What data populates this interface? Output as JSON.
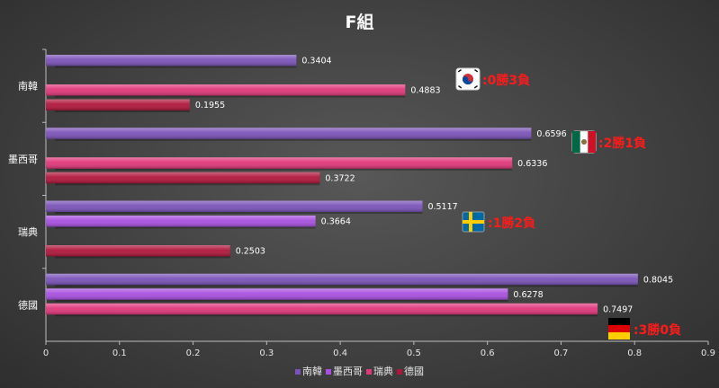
{
  "chart_data": {
    "type": "bar",
    "orientation": "horizontal",
    "title": "F組",
    "categories": [
      "南韓",
      "墨西哥",
      "瑞典",
      "德國"
    ],
    "series": [
      {
        "name": "南韓",
        "color": "#7a52b8",
        "values": [
          0.3404,
          0.6596,
          0.5117,
          0.8045
        ]
      },
      {
        "name": "墨西哥",
        "color": "#a84fe0",
        "values": [
          null,
          null,
          0.3664,
          0.6278
        ]
      },
      {
        "name": "瑞典",
        "color": "#e0367a",
        "values": [
          0.4883,
          0.6336,
          null,
          0.7497
        ]
      },
      {
        "name": "德國",
        "color": "#b0153a",
        "values": [
          0.1955,
          0.3722,
          0.2503,
          null
        ]
      }
    ],
    "xlim": [
      0,
      0.9
    ],
    "xticks": [
      "0",
      "0.1",
      "0.2",
      "0.3",
      "0.4",
      "0.5",
      "0.6",
      "0.7",
      "0.8",
      "0.9"
    ],
    "grid": false,
    "legend_position": "bottom",
    "annotations": [
      {
        "category": "南韓",
        "flag": "korea-flag-icon",
        "text": ":0勝3負",
        "color": "#ff1a1a"
      },
      {
        "category": "墨西哥",
        "flag": "mexico-flag-icon",
        "text": ":2勝1負",
        "color": "#ff1a1a"
      },
      {
        "category": "瑞典",
        "flag": "sweden-flag-icon",
        "text": ":1勝2負",
        "color": "#ff1a1a"
      },
      {
        "category": "德國",
        "flag": "germany-flag-icon",
        "text": ":3勝0負",
        "color": "#ff1a1a"
      }
    ]
  }
}
